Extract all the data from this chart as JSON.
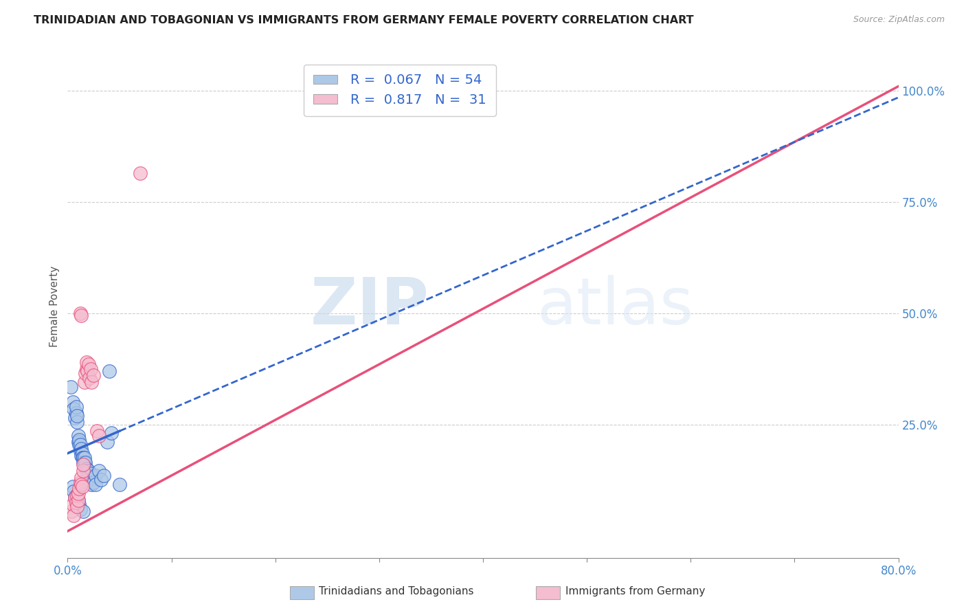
{
  "title": "TRINIDADIAN AND TOBAGONIAN VS IMMIGRANTS FROM GERMANY FEMALE POVERTY CORRELATION CHART",
  "source": "Source: ZipAtlas.com",
  "ylabel": "Female Poverty",
  "right_yticks": [
    "100.0%",
    "75.0%",
    "50.0%",
    "25.0%"
  ],
  "right_ytick_vals": [
    1.0,
    0.75,
    0.5,
    0.25
  ],
  "xmin": 0.0,
  "xmax": 0.8,
  "ymin": -0.05,
  "ymax": 1.08,
  "blue_R": 0.067,
  "blue_N": 54,
  "pink_R": 0.817,
  "pink_N": 31,
  "blue_color": "#aec9e8",
  "pink_color": "#f5bdd0",
  "blue_line_color": "#3366cc",
  "pink_line_color": "#e8507a",
  "blue_scatter": [
    [
      0.003,
      0.335
    ],
    [
      0.005,
      0.3
    ],
    [
      0.006,
      0.285
    ],
    [
      0.007,
      0.265
    ],
    [
      0.008,
      0.275
    ],
    [
      0.008,
      0.29
    ],
    [
      0.009,
      0.255
    ],
    [
      0.009,
      0.27
    ],
    [
      0.01,
      0.225
    ],
    [
      0.01,
      0.21
    ],
    [
      0.011,
      0.205
    ],
    [
      0.011,
      0.215
    ],
    [
      0.012,
      0.19
    ],
    [
      0.012,
      0.205
    ],
    [
      0.013,
      0.18
    ],
    [
      0.013,
      0.195
    ],
    [
      0.014,
      0.185
    ],
    [
      0.014,
      0.175
    ],
    [
      0.015,
      0.175
    ],
    [
      0.015,
      0.165
    ],
    [
      0.016,
      0.165
    ],
    [
      0.016,
      0.175
    ],
    [
      0.017,
      0.155
    ],
    [
      0.017,
      0.165
    ],
    [
      0.018,
      0.15
    ],
    [
      0.018,
      0.145
    ],
    [
      0.019,
      0.14
    ],
    [
      0.019,
      0.135
    ],
    [
      0.02,
      0.145
    ],
    [
      0.02,
      0.135
    ],
    [
      0.021,
      0.125
    ],
    [
      0.022,
      0.14
    ],
    [
      0.023,
      0.125
    ],
    [
      0.023,
      0.115
    ],
    [
      0.025,
      0.13
    ],
    [
      0.025,
      0.12
    ],
    [
      0.027,
      0.135
    ],
    [
      0.027,
      0.115
    ],
    [
      0.03,
      0.145
    ],
    [
      0.032,
      0.125
    ],
    [
      0.035,
      0.135
    ],
    [
      0.038,
      0.21
    ],
    [
      0.04,
      0.37
    ],
    [
      0.042,
      0.23
    ],
    [
      0.005,
      0.11
    ],
    [
      0.006,
      0.1
    ],
    [
      0.007,
      0.085
    ],
    [
      0.008,
      0.09
    ],
    [
      0.009,
      0.075
    ],
    [
      0.01,
      0.08
    ],
    [
      0.011,
      0.07
    ],
    [
      0.012,
      0.06
    ],
    [
      0.015,
      0.055
    ],
    [
      0.05,
      0.115
    ]
  ],
  "pink_scatter": [
    [
      0.004,
      0.055
    ],
    [
      0.005,
      0.07
    ],
    [
      0.006,
      0.045
    ],
    [
      0.007,
      0.085
    ],
    [
      0.008,
      0.075
    ],
    [
      0.009,
      0.065
    ],
    [
      0.009,
      0.09
    ],
    [
      0.01,
      0.08
    ],
    [
      0.01,
      0.095
    ],
    [
      0.011,
      0.105
    ],
    [
      0.012,
      0.12
    ],
    [
      0.013,
      0.13
    ],
    [
      0.013,
      0.115
    ],
    [
      0.014,
      0.11
    ],
    [
      0.015,
      0.145
    ],
    [
      0.015,
      0.16
    ],
    [
      0.016,
      0.345
    ],
    [
      0.017,
      0.365
    ],
    [
      0.018,
      0.375
    ],
    [
      0.018,
      0.39
    ],
    [
      0.019,
      0.37
    ],
    [
      0.02,
      0.385
    ],
    [
      0.021,
      0.355
    ],
    [
      0.022,
      0.375
    ],
    [
      0.023,
      0.345
    ],
    [
      0.025,
      0.36
    ],
    [
      0.028,
      0.235
    ],
    [
      0.03,
      0.225
    ],
    [
      0.012,
      0.5
    ],
    [
      0.013,
      0.495
    ],
    [
      0.07,
      0.815
    ]
  ],
  "watermark_zip": "ZIP",
  "watermark_atlas": "atlas",
  "legend_label_blue": "Trinidadians and Tobagonians",
  "legend_label_pink": "Immigrants from Germany"
}
